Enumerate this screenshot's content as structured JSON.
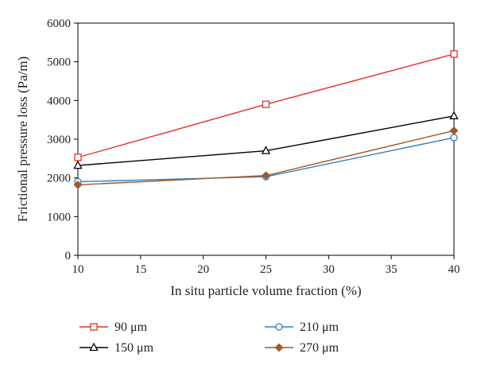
{
  "chart_data": {
    "type": "line",
    "title": "",
    "xlabel": "In situ particle volume fraction (%)",
    "ylabel": "Frictional pressure loss (Pa/m)",
    "xlim": [
      10,
      40
    ],
    "ylim": [
      0,
      6000
    ],
    "xticks": [
      10,
      15,
      20,
      25,
      30,
      35,
      40
    ],
    "yticks": [
      0,
      1000,
      2000,
      3000,
      4000,
      5000,
      6000
    ],
    "grid": false,
    "legend_position": "bottom",
    "x": [
      10,
      25,
      40
    ],
    "series": [
      {
        "name": "90 μm",
        "values": [
          2530,
          3900,
          5200
        ],
        "color": "#e8302a",
        "marker": "square"
      },
      {
        "name": "150 μm",
        "values": [
          2320,
          2700,
          3600
        ],
        "color": "#000000",
        "marker": "triangle"
      },
      {
        "name": "210 μm",
        "values": [
          1900,
          2030,
          3040
        ],
        "color": "#2f7fc1",
        "marker": "circle"
      },
      {
        "name": "270 μm",
        "values": [
          1820,
          2060,
          3220
        ],
        "color": "#a0592a",
        "marker": "diamond"
      }
    ]
  }
}
